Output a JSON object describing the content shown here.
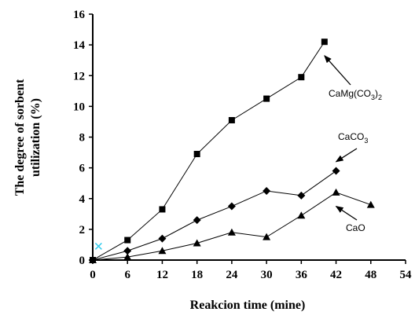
{
  "chart_data": {
    "type": "line",
    "title": "",
    "xlabel": "Reakcion time (mine)",
    "ylabel_line1": "The degree of sorbent",
    "ylabel_line2": "utilization (%)",
    "xlim": [
      0,
      54
    ],
    "ylim": [
      0,
      16
    ],
    "xticks": [
      0,
      6,
      12,
      18,
      24,
      30,
      36,
      42,
      48,
      54
    ],
    "yticks": [
      0,
      2,
      4,
      6,
      8,
      10,
      12,
      14,
      16
    ],
    "grid": false,
    "series": [
      {
        "marker": "square",
        "color": "#000000",
        "x": [
          0,
          6,
          12,
          18,
          24,
          30,
          36,
          40
        ],
        "y": [
          0,
          1.3,
          3.3,
          6.9,
          9.1,
          10.5,
          11.9,
          14.2
        ]
      },
      {
        "marker": "diamond",
        "color": "#000000",
        "x": [
          0,
          6,
          12,
          18,
          24,
          30,
          36,
          42
        ],
        "y": [
          0,
          0.6,
          1.4,
          2.6,
          3.5,
          4.5,
          4.2,
          5.8
        ]
      },
      {
        "marker": "triangle",
        "color": "#000000",
        "x": [
          0,
          6,
          12,
          18,
          24,
          30,
          36,
          42,
          48
        ],
        "y": [
          0,
          0.2,
          0.6,
          1.1,
          1.8,
          1.5,
          2.9,
          4.4,
          3.6
        ]
      }
    ],
    "extra_point": {
      "marker": "x",
      "color": "#33ccee",
      "x": 1,
      "y": 0.9
    },
    "annotations": [
      {
        "label": "CaMg(CO",
        "sub": "3",
        "label_end": ")",
        "sub_end": "2",
        "target_x": 40,
        "target_y": 13.3
      },
      {
        "label": "CaCO",
        "sub": "3",
        "label_end": "",
        "sub_end": "",
        "target_x": 42,
        "target_y": 6.4
      },
      {
        "label": "CaO",
        "sub": "",
        "label_end": "",
        "sub_end": "",
        "target_x": 42,
        "target_y": 3.5
      }
    ]
  }
}
